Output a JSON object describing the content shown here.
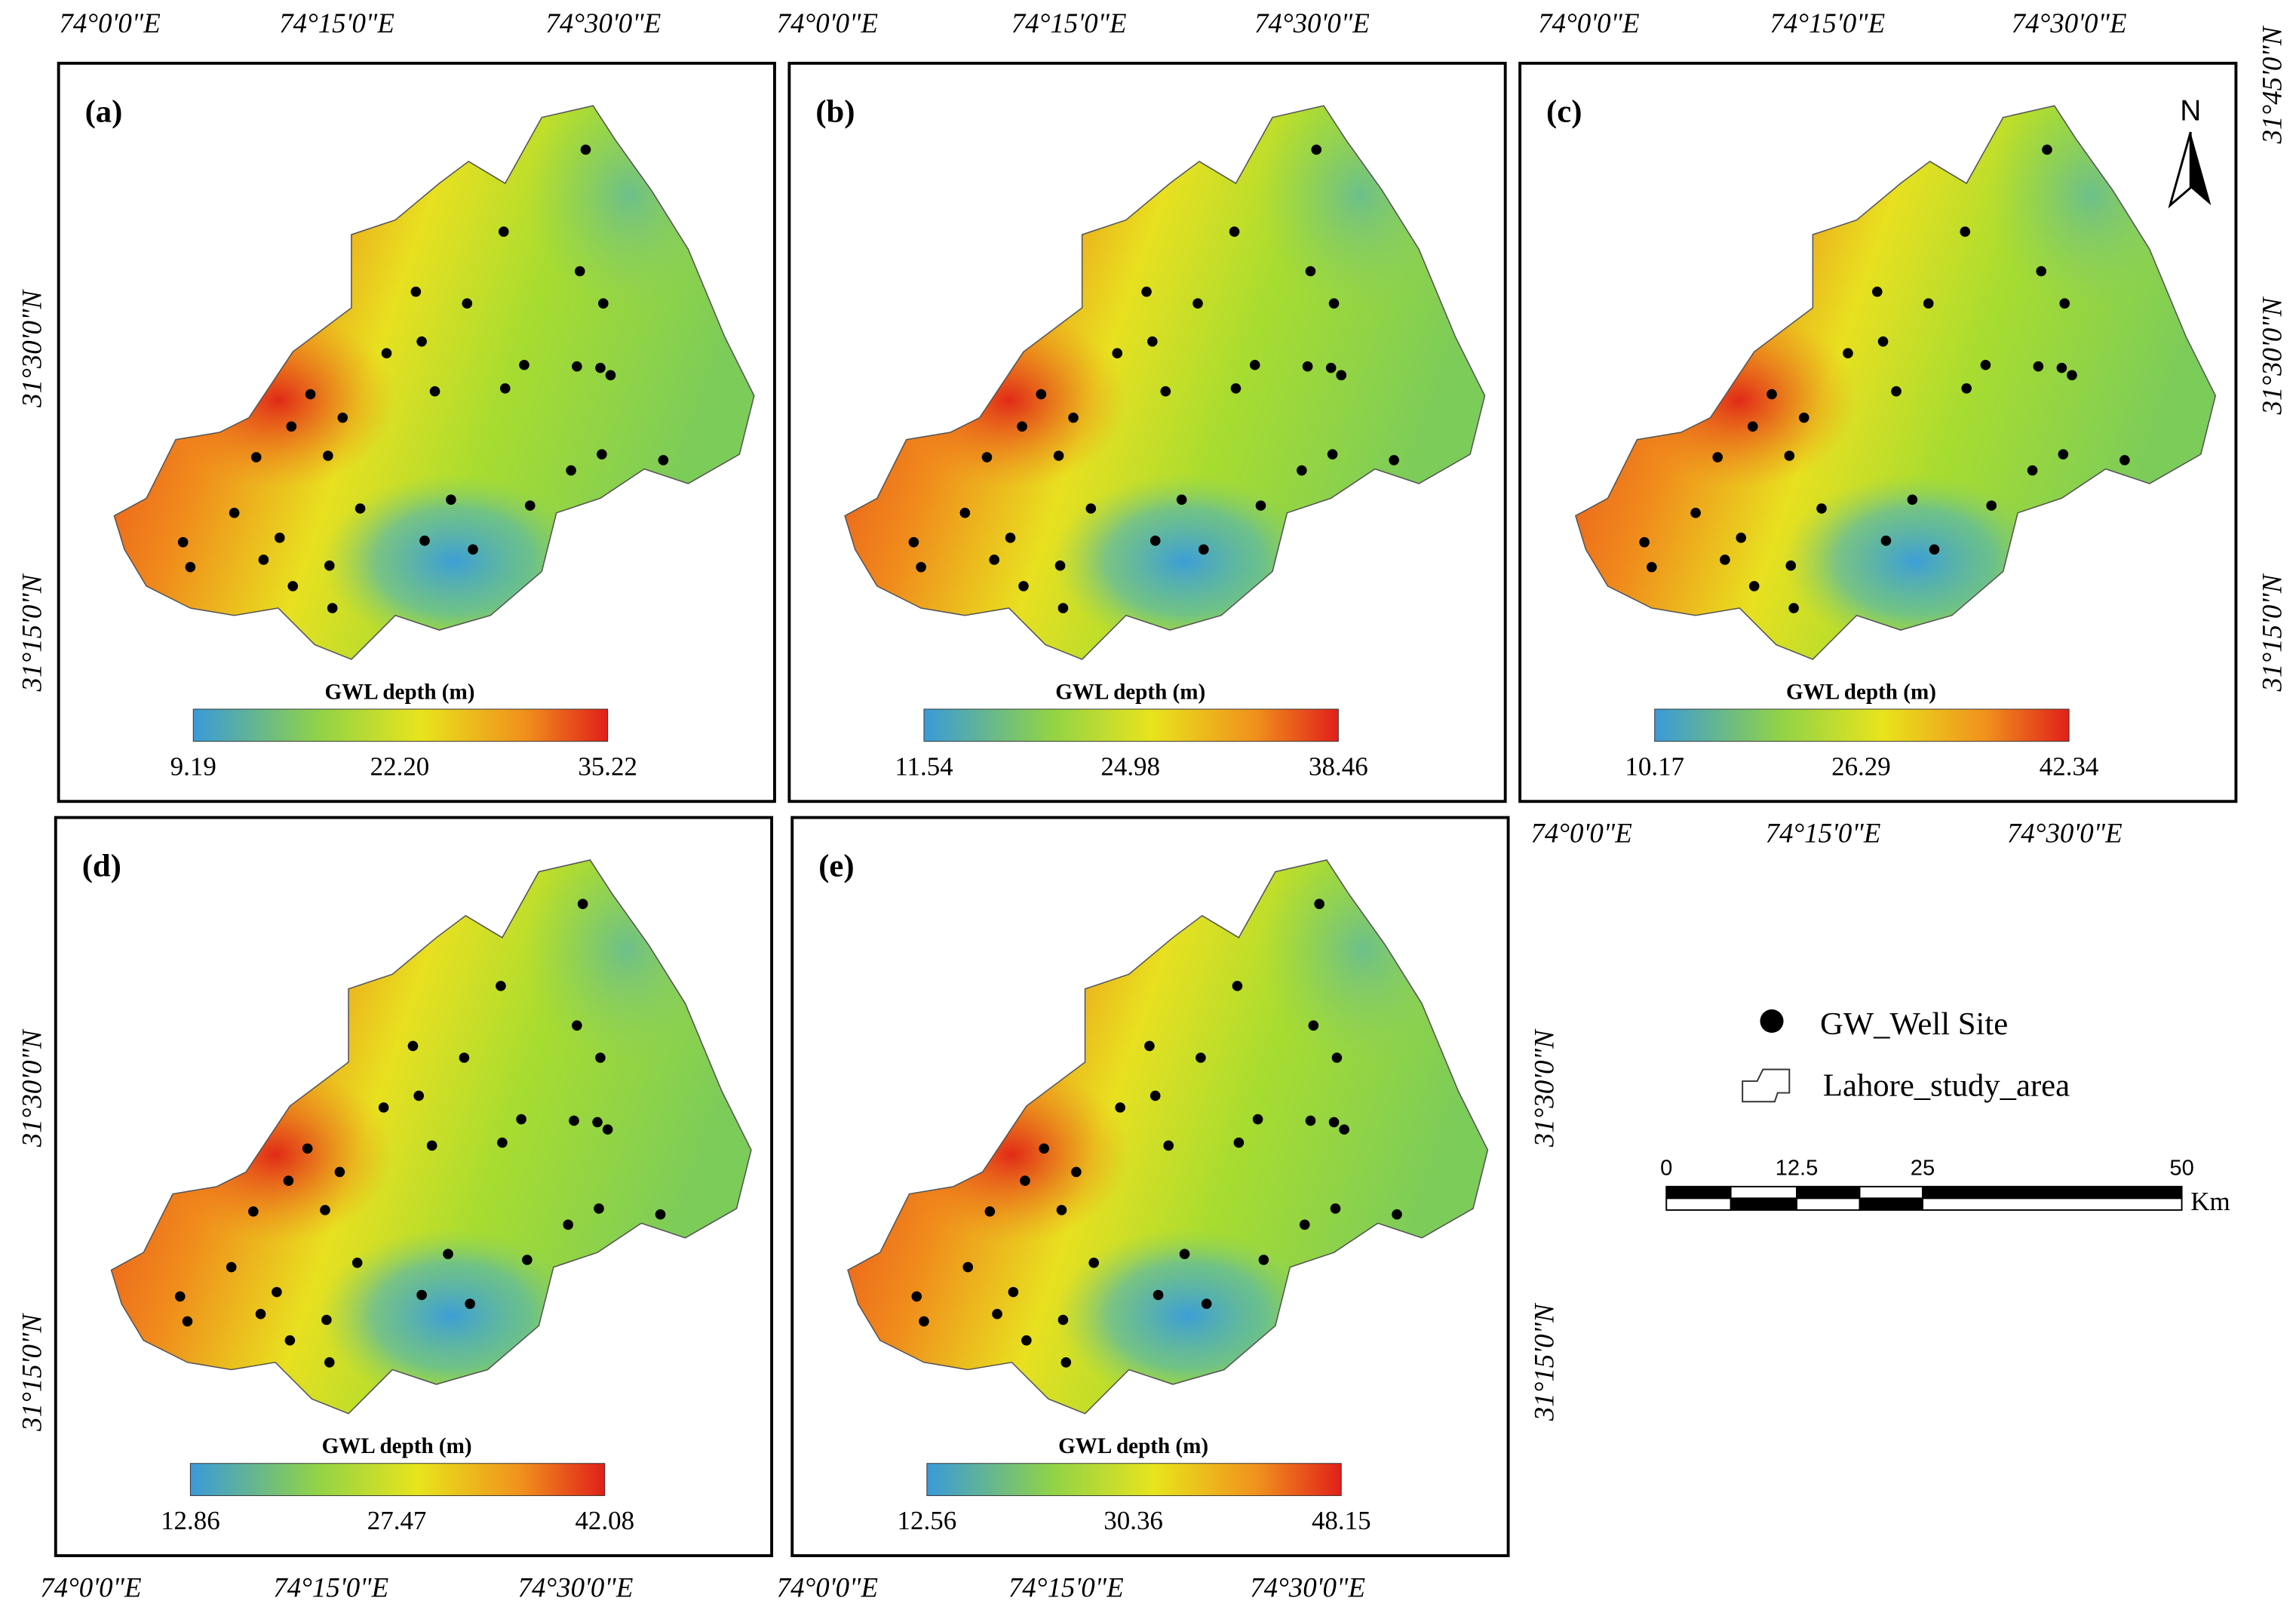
{
  "panels": [
    {
      "label": "(a)",
      "legend_title": "GWL depth (m)",
      "legend_labels": [
        "9.19",
        "22.20",
        "35.22"
      ]
    },
    {
      "label": "(b)",
      "legend_title": "GWL depth (m)",
      "legend_labels": [
        "11.54",
        "24.98",
        "38.46"
      ]
    },
    {
      "label": "(c)",
      "legend_title": "GWL depth (m)",
      "legend_labels": [
        "10.17",
        "26.29",
        "42.34"
      ]
    },
    {
      "label": "(d)",
      "legend_title": "GWL depth (m)",
      "legend_labels": [
        "12.86",
        "27.47",
        "42.08"
      ]
    },
    {
      "label": "(e)",
      "legend_title": "GWL depth (m)",
      "legend_labels": [
        "12.56",
        "30.36",
        "48.15"
      ]
    }
  ],
  "lon_labels": [
    "74°0'0\"E",
    "74°15'0\"E",
    "74°30'0\"E"
  ],
  "lat_labels": [
    "31°45'0\"N",
    "31°30'0\"N",
    "31°15'0\"N"
  ],
  "north": "N",
  "legend": {
    "items": [
      "GW_Well Site",
      "Lahore_study_area"
    ]
  },
  "scale_bar": {
    "labels": [
      "0",
      "12.5",
      "25",
      "50"
    ],
    "unit": "Km"
  }
}
